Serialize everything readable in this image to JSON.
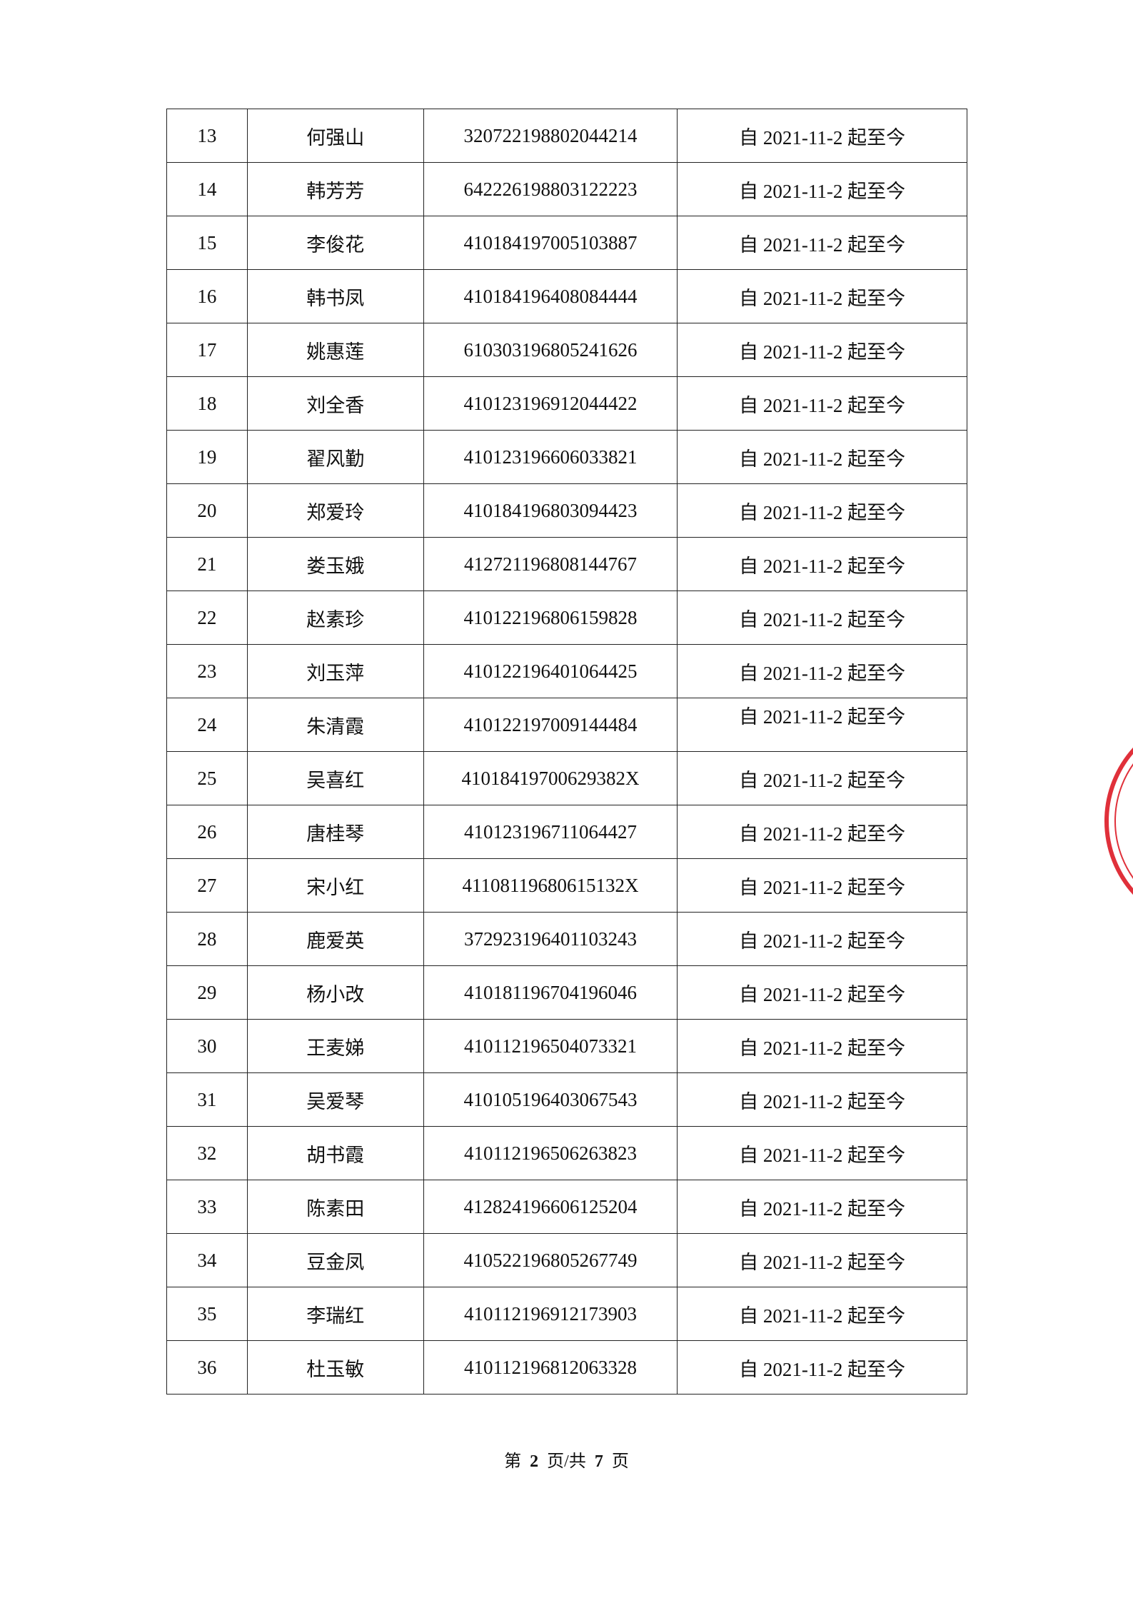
{
  "table": {
    "rows": [
      [
        "13",
        "何强山",
        "320722198802044214",
        "自 2021-11-2 起至今"
      ],
      [
        "14",
        "韩芳芳",
        "642226198803122223",
        "自 2021-11-2 起至今"
      ],
      [
        "15",
        "李俊花",
        "410184197005103887",
        "自 2021-11-2 起至今"
      ],
      [
        "16",
        "韩书凤",
        "410184196408084444",
        "自 2021-11-2 起至今"
      ],
      [
        "17",
        "姚惠莲",
        "610303196805241626",
        "自 2021-11-2 起至今"
      ],
      [
        "18",
        "刘全香",
        "410123196912044422",
        "自 2021-11-2 起至今"
      ],
      [
        "19",
        "翟风勤",
        "410123196606033821",
        "自 2021-11-2 起至今"
      ],
      [
        "20",
        "郑爱玲",
        "410184196803094423",
        "自 2021-11-2 起至今"
      ],
      [
        "21",
        "娄玉娥",
        "412721196808144767",
        "自 2021-11-2 起至今"
      ],
      [
        "22",
        "赵素珍",
        "410122196806159828",
        "自 2021-11-2 起至今"
      ],
      [
        "23",
        "刘玉萍",
        "410122196401064425",
        "自 2021-11-2 起至今"
      ],
      [
        "24",
        "朱清霞",
        "410122197009144484",
        "自 2021-11-2 起至今"
      ],
      [
        "25",
        "吴喜红",
        "41018419700629382X",
        "自 2021-11-2 起至今"
      ],
      [
        "26",
        "唐桂琴",
        "410123196711064427",
        "自 2021-11-2 起至今"
      ],
      [
        "27",
        "宋小红",
        "41108119680615132X",
        "自 2021-11-2 起至今"
      ],
      [
        "28",
        "鹿爱英",
        "372923196401103243",
        "自 2021-11-2 起至今"
      ],
      [
        "29",
        "杨小改",
        "410181196704196046",
        "自 2021-11-2 起至今"
      ],
      [
        "30",
        "王麦娣",
        "410112196504073321",
        "自 2021-11-2 起至今"
      ],
      [
        "31",
        "吴爱琴",
        "410105196403067543",
        "自 2021-11-2 起至今"
      ],
      [
        "32",
        "胡书霞",
        "410112196506263823",
        "自 2021-11-2 起至今"
      ],
      [
        "33",
        "陈素田",
        "412824196606125204",
        "自 2021-11-2 起至今"
      ],
      [
        "34",
        "豆金凤",
        "410522196805267749",
        "自 2021-11-2 起至今"
      ],
      [
        "35",
        "李瑞红",
        "410112196912173903",
        "自 2021-11-2 起至今"
      ],
      [
        "36",
        "杜玉敏",
        "410112196812063328",
        "自 2021-11-2 起至今"
      ]
    ]
  },
  "footer": {
    "prefix": "第",
    "page": "2",
    "middle": "页/共",
    "total": "7",
    "suffix": "页"
  }
}
